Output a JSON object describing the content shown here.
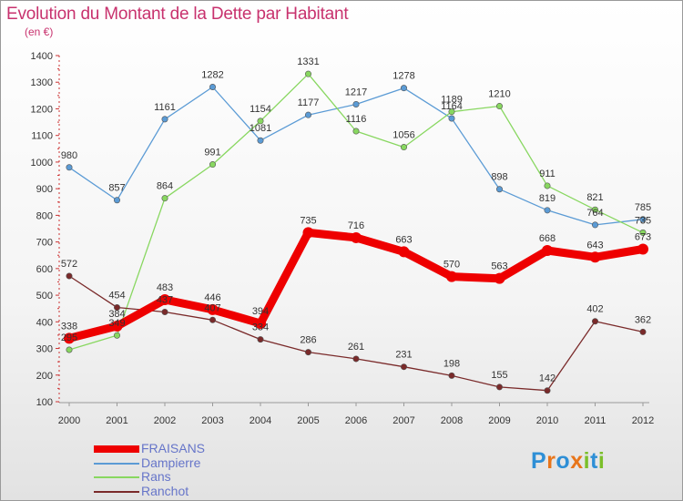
{
  "title": "Evolution du Montant de la Dette par Habitant",
  "unit": "(en €)",
  "logo": {
    "text": "Proxiti",
    "letter_colors": [
      "#2e8fd6",
      "#e8751a",
      "#2e8fd6",
      "#e8751a",
      "#7bbf2a",
      "#2e8fd6",
      "#7bbf2a"
    ]
  },
  "chart_data": {
    "type": "line",
    "categories": [
      "2000",
      "2001",
      "2002",
      "2003",
      "2004",
      "2005",
      "2006",
      "2007",
      "2008",
      "2009",
      "2010",
      "2011",
      "2012"
    ],
    "ylim": [
      100,
      1400
    ],
    "yticks": [
      100,
      200,
      300,
      400,
      500,
      600,
      700,
      800,
      900,
      1000,
      1100,
      1200,
      1300,
      1400
    ],
    "grid": false,
    "legend_position": "bottom-left",
    "series": [
      {
        "name": "FRAISANS",
        "color": "#ee0000",
        "emphasis": true,
        "values": [
          338,
          384,
          483,
          446,
          394,
          735,
          716,
          663,
          570,
          563,
          668,
          643,
          673
        ],
        "labels": [
          "338",
          "384",
          "483",
          "446",
          "394",
          "735",
          "716",
          "663",
          "570",
          "563",
          "668",
          "643",
          "673"
        ]
      },
      {
        "name": "Dampierre",
        "color": "#5b9bd5",
        "emphasis": false,
        "values": [
          980,
          857,
          1161,
          1282,
          1081,
          1177,
          1217,
          1278,
          1164,
          898,
          819,
          764,
          785
        ],
        "labels": [
          "980",
          "857",
          "1161",
          "1282",
          "1081",
          "1177",
          "1217",
          "1278",
          "1164",
          "898",
          "819",
          "764",
          "785"
        ]
      },
      {
        "name": "Rans",
        "color": "#88d760",
        "emphasis": false,
        "values": [
          295,
          349,
          864,
          991,
          1154,
          1331,
          1116,
          1056,
          1189,
          1210,
          911,
          821,
          735
        ],
        "labels": [
          "295",
          "349",
          "864",
          "991",
          "1154",
          "1331",
          "1116",
          "1056",
          "1189",
          "1210",
          "911",
          "821",
          "735"
        ]
      },
      {
        "name": "Ranchot",
        "color": "#7a2a2a",
        "emphasis": false,
        "values": [
          572,
          454,
          437,
          407,
          334,
          286,
          261,
          231,
          198,
          155,
          142,
          402,
          362
        ],
        "labels": [
          "572",
          "454",
          "437",
          "407",
          "334",
          "286",
          "261",
          "231",
          "198",
          "155",
          "142",
          "402",
          "362"
        ]
      }
    ]
  }
}
